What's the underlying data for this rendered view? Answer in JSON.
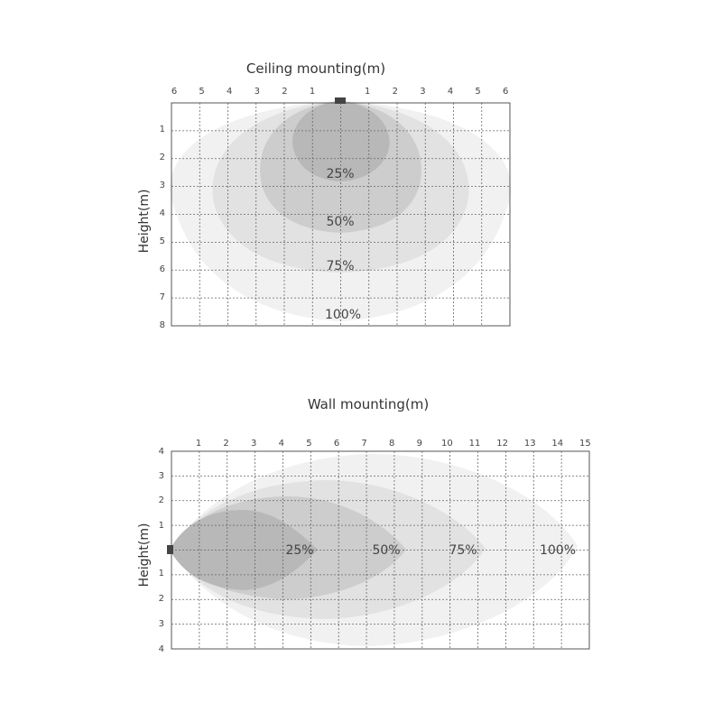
{
  "ceiling": {
    "title": "Ceiling mounting(m)",
    "ylabel": "Height(m)",
    "x_ticks": [
      "6",
      "5",
      "4",
      "3",
      "2",
      "1",
      "",
      "1",
      "2",
      "3",
      "4",
      "5",
      "6"
    ],
    "y_ticks": [
      "1",
      "2",
      "3",
      "4",
      "5",
      "6",
      "7",
      "8"
    ],
    "zones": [
      {
        "label": "100%",
        "color": "#f1f1f1"
      },
      {
        "label": "75%",
        "color": "#e2e2e2"
      },
      {
        "label": "50%",
        "color": "#cdcdcd"
      },
      {
        "label": "25%",
        "color": "#b8b8b8"
      }
    ]
  },
  "wall": {
    "title": "Wall mounting(m)",
    "ylabel": "Height(m)",
    "x_ticks": [
      "1",
      "2",
      "3",
      "4",
      "5",
      "6",
      "7",
      "8",
      "9",
      "10",
      "11",
      "12",
      "13",
      "14",
      "15"
    ],
    "y_ticks": [
      "4",
      "3",
      "2",
      "1",
      "1",
      "2",
      "3",
      "4"
    ],
    "zones": [
      {
        "label": "100%",
        "color": "#f1f1f1"
      },
      {
        "label": "75%",
        "color": "#e2e2e2"
      },
      {
        "label": "50%",
        "color": "#cdcdcd"
      },
      {
        "label": "25%",
        "color": "#b8b8b8"
      }
    ]
  },
  "sensor_color": "#444444"
}
